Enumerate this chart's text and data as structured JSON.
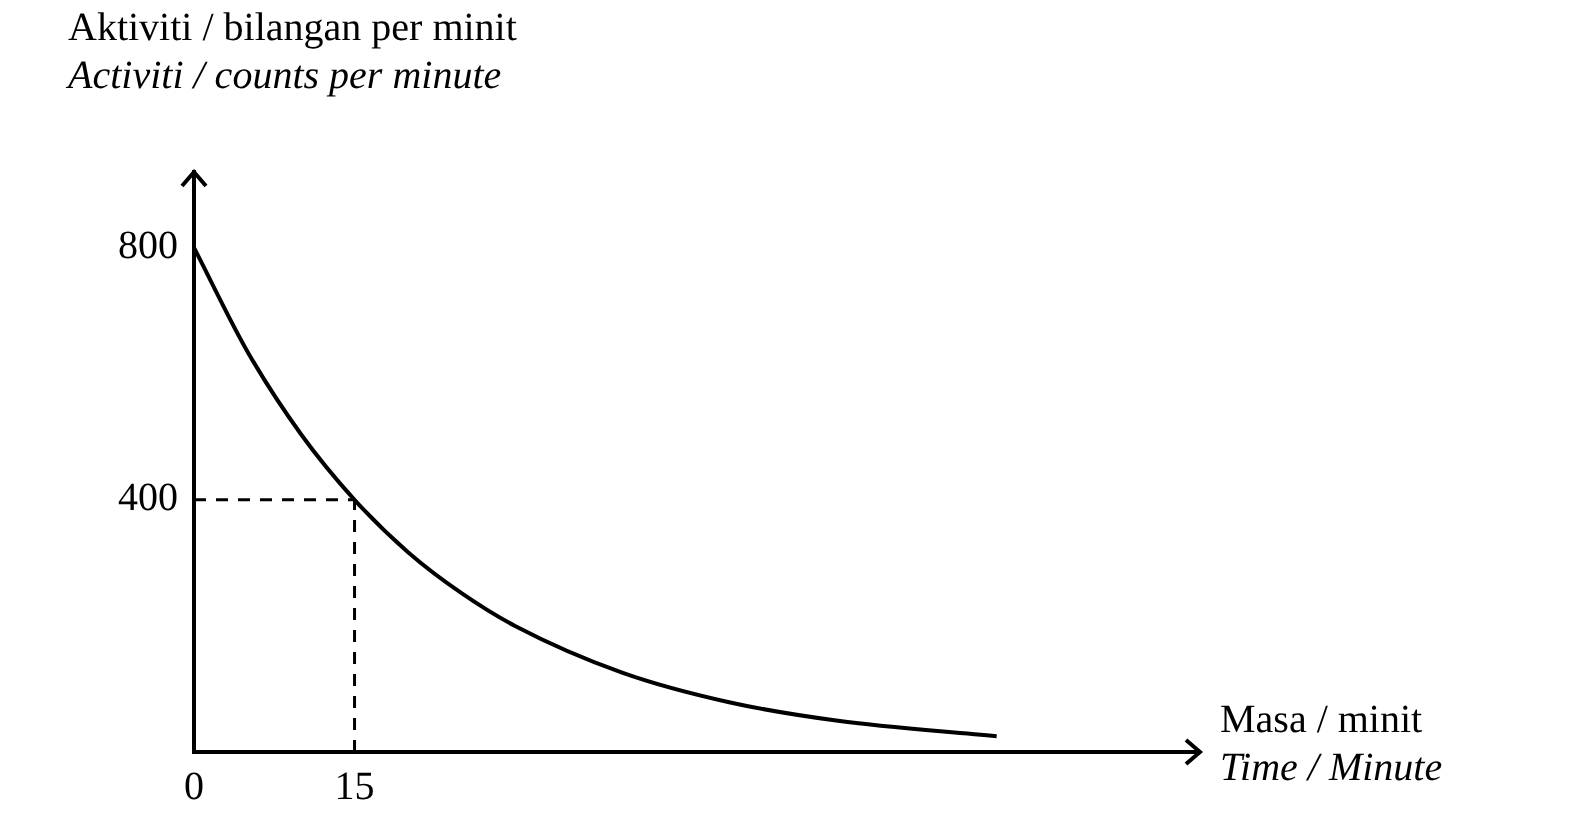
{
  "chart_data": {
    "type": "line",
    "xlabel": "Masa / minit\nTime / Minute",
    "ylabel": "Aktiviti / bilangan per minit\nActiviti / counts per minute",
    "x": [
      0,
      5,
      10,
      15,
      20,
      25,
      30,
      40,
      50,
      60,
      75
    ],
    "series": [
      {
        "color": "#000000",
        "values": [
          800,
          635,
          504,
          400,
          317,
          252,
          200,
          126,
          79,
          50,
          25
        ]
      }
    ],
    "xlim": [
      0,
      94
    ],
    "ylim": [
      0,
      920
    ],
    "xticks": [
      0,
      15
    ],
    "yticks": [
      400,
      800
    ],
    "ref_lines": [
      {
        "axis": "y",
        "value": 400,
        "color": "#000000",
        "line_style": "dashed"
      },
      {
        "axis": "x",
        "value": 15,
        "color": "#000000",
        "line_style": "dashed"
      }
    ],
    "grid": false,
    "legend": false,
    "marker": "none",
    "line_style": "solid"
  }
}
